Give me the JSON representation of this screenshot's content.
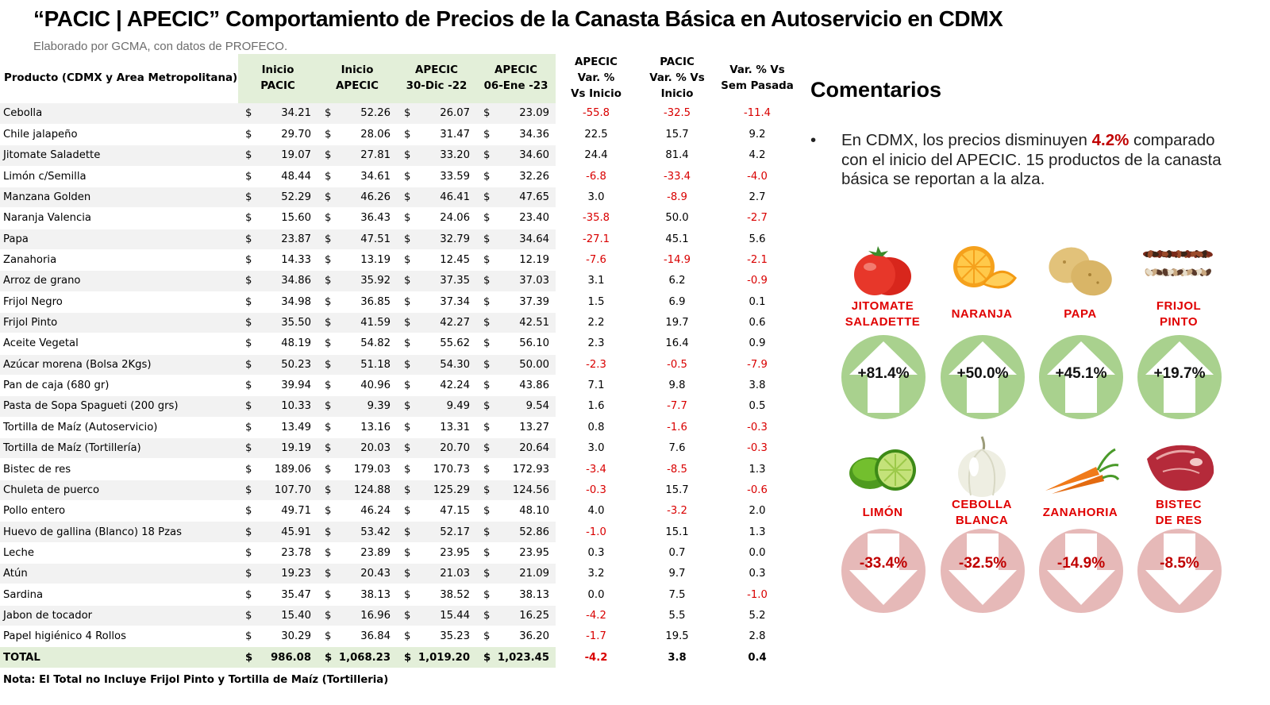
{
  "header": {
    "title": "“PACIC | APECIC” Comportamiento de Precios de la Canasta Básica en Autoservicio en CDMX",
    "subtitle": "Elaborado por GCMA, con datos de PROFECO."
  },
  "table": {
    "columns": {
      "product": "Producto (CDMX y Area Metropolitana)",
      "inicio_pacic": [
        "Inicio",
        "PACIC"
      ],
      "inicio_apecic": [
        "Inicio",
        "APECIC"
      ],
      "apecic_30dic": [
        "APECIC",
        "30-Dic -22"
      ],
      "apecic_06ene": [
        "APECIC",
        "06-Ene -23"
      ],
      "var_apecic": [
        "APECIC",
        "Var. %",
        "Vs  Inicio"
      ],
      "var_pacic": [
        "PACIC",
        "Var. % Vs",
        "Inicio"
      ],
      "var_sem": [
        "Var. % Vs",
        "Sem Pasada"
      ]
    },
    "currency_symbol": "$",
    "rows": [
      {
        "name": "Cebolla",
        "p1": "34.21",
        "p2": "52.26",
        "p3": "26.07",
        "p4": "23.09",
        "v1": "-55.8",
        "v2": "-32.5",
        "v3": "-11.4"
      },
      {
        "name": "Chile jalapeño",
        "p1": "29.70",
        "p2": "28.06",
        "p3": "31.47",
        "p4": "34.36",
        "v1": "22.5",
        "v2": "15.7",
        "v3": "9.2"
      },
      {
        "name": "Jitomate Saladette",
        "p1": "19.07",
        "p2": "27.81",
        "p3": "33.20",
        "p4": "34.60",
        "v1": "24.4",
        "v2": "81.4",
        "v3": "4.2"
      },
      {
        "name": "Limón c/Semilla",
        "p1": "48.44",
        "p2": "34.61",
        "p3": "33.59",
        "p4": "32.26",
        "v1": "-6.8",
        "v2": "-33.4",
        "v3": "-4.0"
      },
      {
        "name": "Manzana Golden",
        "p1": "52.29",
        "p2": "46.26",
        "p3": "46.41",
        "p4": "47.65",
        "v1": "3.0",
        "v2": "-8.9",
        "v3": "2.7"
      },
      {
        "name": "Naranja Valencia",
        "p1": "15.60",
        "p2": "36.43",
        "p3": "24.06",
        "p4": "23.40",
        "v1": "-35.8",
        "v2": "50.0",
        "v3": "-2.7"
      },
      {
        "name": "Papa",
        "p1": "23.87",
        "p2": "47.51",
        "p3": "32.79",
        "p4": "34.64",
        "v1": "-27.1",
        "v2": "45.1",
        "v3": "5.6"
      },
      {
        "name": "Zanahoria",
        "p1": "14.33",
        "p2": "13.19",
        "p3": "12.45",
        "p4": "12.19",
        "v1": "-7.6",
        "v2": "-14.9",
        "v3": "-2.1"
      },
      {
        "name": "Arroz de grano",
        "p1": "34.86",
        "p2": "35.92",
        "p3": "37.35",
        "p4": "37.03",
        "v1": "3.1",
        "v2": "6.2",
        "v3": "-0.9"
      },
      {
        "name": "Frijol Negro",
        "p1": "34.98",
        "p2": "36.85",
        "p3": "37.34",
        "p4": "37.39",
        "v1": "1.5",
        "v2": "6.9",
        "v3": "0.1"
      },
      {
        "name": "Frijol Pinto",
        "p1": "35.50",
        "p2": "41.59",
        "p3": "42.27",
        "p4": "42.51",
        "v1": "2.2",
        "v2": "19.7",
        "v3": "0.6"
      },
      {
        "name": "Aceite Vegetal",
        "p1": "48.19",
        "p2": "54.82",
        "p3": "55.62",
        "p4": "56.10",
        "v1": "2.3",
        "v2": "16.4",
        "v3": "0.9"
      },
      {
        "name": "Azúcar morena (Bolsa 2Kgs)",
        "p1": "50.23",
        "p2": "51.18",
        "p3": "54.30",
        "p4": "50.00",
        "v1": "-2.3",
        "v2": "-0.5",
        "v3": "-7.9"
      },
      {
        "name": "Pan de caja (680 gr)",
        "p1": "39.94",
        "p2": "40.96",
        "p3": "42.24",
        "p4": "43.86",
        "v1": "7.1",
        "v2": "9.8",
        "v3": "3.8"
      },
      {
        "name": "Pasta de Sopa Spagueti (200 grs)",
        "p1": "10.33",
        "p2": "9.39",
        "p3": "9.49",
        "p4": "9.54",
        "v1": "1.6",
        "v2": "-7.7",
        "v3": "0.5"
      },
      {
        "name": "Tortilla de Maíz (Autoservicio)",
        "p1": "13.49",
        "p2": "13.16",
        "p3": "13.31",
        "p4": "13.27",
        "v1": "0.8",
        "v2": "-1.6",
        "v3": "-0.3"
      },
      {
        "name": "Tortilla de Maíz (Tortillería)",
        "p1": "19.19",
        "p2": "20.03",
        "p3": "20.70",
        "p4": "20.64",
        "v1": "3.0",
        "v2": "7.6",
        "v3": "-0.3"
      },
      {
        "name": "Bistec de res",
        "p1": "189.06",
        "p2": "179.03",
        "p3": "170.73",
        "p4": "172.93",
        "v1": "-3.4",
        "v2": "-8.5",
        "v3": "1.3"
      },
      {
        "name": "Chuleta de puerco",
        "p1": "107.70",
        "p2": "124.88",
        "p3": "125.29",
        "p4": "124.56",
        "v1": "-0.3",
        "v2": "15.7",
        "v3": "-0.6"
      },
      {
        "name": "Pollo entero",
        "p1": "49.71",
        "p2": "46.24",
        "p3": "47.15",
        "p4": "48.10",
        "v1": "4.0",
        "v2": "-3.2",
        "v3": "2.0"
      },
      {
        "name": "Huevo de gallina (Blanco) 18 Pzas",
        "p1": "45.91",
        "p2": "53.42",
        "p3": "52.17",
        "p4": "52.86",
        "v1": "-1.0",
        "v2": "15.1",
        "v3": "1.3"
      },
      {
        "name": "Leche",
        "p1": "23.78",
        "p2": "23.89",
        "p3": "23.95",
        "p4": "23.95",
        "v1": "0.3",
        "v2": "0.7",
        "v3": "0.0"
      },
      {
        "name": "Atún",
        "p1": "19.23",
        "p2": "20.43",
        "p3": "21.03",
        "p4": "21.09",
        "v1": "3.2",
        "v2": "9.7",
        "v3": "0.3"
      },
      {
        "name": "Sardina",
        "p1": "35.47",
        "p2": "38.13",
        "p3": "38.52",
        "p4": "38.13",
        "v1": "0.0",
        "v2": "7.5",
        "v3": "-1.0"
      },
      {
        "name": "Jabon de tocador",
        "p1": "15.40",
        "p2": "16.96",
        "p3": "15.44",
        "p4": "16.25",
        "v1": "-4.2",
        "v2": "5.5",
        "v3": "5.2"
      },
      {
        "name": "Papel higiénico 4 Rollos",
        "p1": "30.29",
        "p2": "36.84",
        "p3": "35.23",
        "p4": "36.20",
        "v1": "-1.7",
        "v2": "19.5",
        "v3": "2.8"
      }
    ],
    "total": {
      "name": "TOTAL",
      "p1": "986.08",
      "p2": "1,068.23",
      "p3": "1,019.20",
      "p4": "1,023.45",
      "v1": "-4.2",
      "v2": "3.8",
      "v3": "0.4"
    },
    "note": "Nota: El Total no Incluye Frijol Pinto y Tortilla de Maíz (Tortilleria)"
  },
  "comments": {
    "title": "Comentarios",
    "bullet_symbol": "•",
    "text_before": "En CDMX, los precios disminuyen ",
    "highlight": "4.2%",
    "text_after": " comparado con el inicio del APECIC. 15 productos de la canasta básica se reportan a la alza."
  },
  "highlights": {
    "up": [
      {
        "label": [
          "JITOMATE",
          "SALADETTE"
        ],
        "value": "+81.4%",
        "icon": "tomato-icon"
      },
      {
        "label": [
          "NARANJA"
        ],
        "value": "+50.0%",
        "icon": "orange-icon"
      },
      {
        "label": [
          "PAPA"
        ],
        "value": "+45.1%",
        "icon": "potato-icon"
      },
      {
        "label": [
          "FRIJOL",
          "PINTO"
        ],
        "value": "+19.7%",
        "icon": "beans-icon"
      }
    ],
    "down": [
      {
        "label": [
          "LIMÓN"
        ],
        "value": "-33.4%",
        "icon": "lime-icon"
      },
      {
        "label": [
          "CEBOLLA",
          "BLANCA"
        ],
        "value": "-32.5%",
        "icon": "onion-icon"
      },
      {
        "label": [
          "ZANAHORIA"
        ],
        "value": "-14.9%",
        "icon": "carrot-icon"
      },
      {
        "label": [
          "BISTEC",
          "DE RES"
        ],
        "value": "-8.5%",
        "icon": "beef-icon"
      }
    ]
  },
  "colors": {
    "header_green": "#e3efd9",
    "up_circle": "#a9d18e",
    "down_circle": "#e6b9b8",
    "negative_red": "#d90000",
    "label_red": "#e00000"
  }
}
